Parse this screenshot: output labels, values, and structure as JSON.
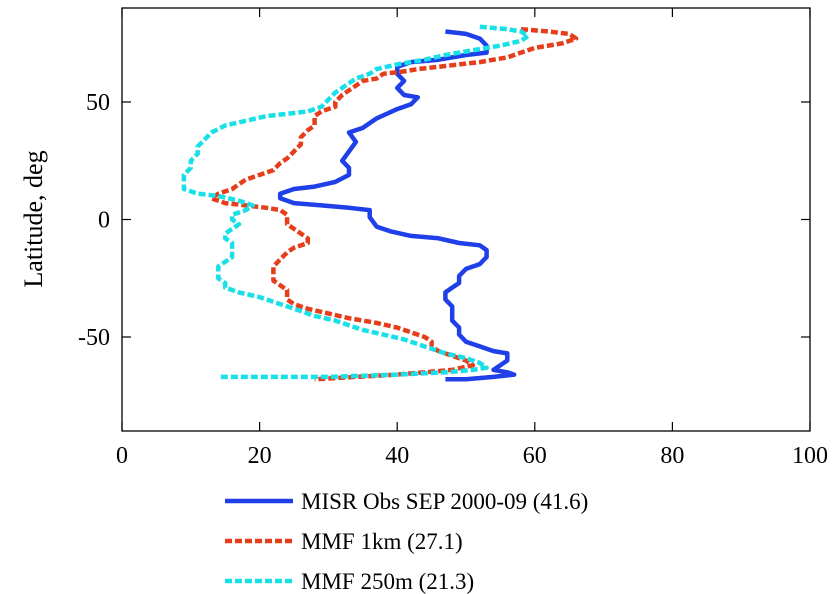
{
  "chart_data": {
    "type": "line",
    "title": "",
    "xlabel": "",
    "ylabel": "Latitude, deg",
    "xlim": [
      0,
      100
    ],
    "ylim": [
      -90,
      90
    ],
    "xticks": [
      0,
      20,
      40,
      60,
      80,
      100
    ],
    "yticks": [
      -50,
      0,
      50
    ],
    "x_tick_labels": [
      "0",
      "20",
      "40",
      "60",
      "80",
      "100"
    ],
    "y_tick_labels": [
      "-50",
      "0",
      "50"
    ],
    "grid": false,
    "legend_position": "bottom",
    "series": [
      {
        "name": "MISR Obs SEP 2000-09 (41.6)",
        "color": "#1f3fe8",
        "style": "solid",
        "points": [
          [
            47,
            80
          ],
          [
            50,
            79
          ],
          [
            52,
            77
          ],
          [
            53,
            74
          ],
          [
            53,
            71
          ],
          [
            50,
            70
          ],
          [
            46,
            68
          ],
          [
            42,
            67
          ],
          [
            40,
            65
          ],
          [
            40,
            62
          ],
          [
            41,
            59
          ],
          [
            40,
            56
          ],
          [
            41,
            53
          ],
          [
            43,
            52
          ],
          [
            42,
            49
          ],
          [
            40,
            47
          ],
          [
            37,
            43
          ],
          [
            35,
            39
          ],
          [
            33,
            37
          ],
          [
            34,
            33
          ],
          [
            33,
            29
          ],
          [
            32,
            25
          ],
          [
            33,
            22
          ],
          [
            33,
            19
          ],
          [
            31,
            16
          ],
          [
            28,
            14
          ],
          [
            25,
            13
          ],
          [
            23,
            11
          ],
          [
            23,
            9
          ],
          [
            25,
            7
          ],
          [
            29,
            6
          ],
          [
            33,
            5
          ],
          [
            36,
            4
          ],
          [
            36,
            1
          ],
          [
            37,
            -3
          ],
          [
            39,
            -5
          ],
          [
            42,
            -7
          ],
          [
            46,
            -8
          ],
          [
            49,
            -10
          ],
          [
            52,
            -11
          ],
          [
            53,
            -13
          ],
          [
            53,
            -16
          ],
          [
            52,
            -19
          ],
          [
            50,
            -21
          ],
          [
            49,
            -24
          ],
          [
            49,
            -27
          ],
          [
            48,
            -29
          ],
          [
            47,
            -31
          ],
          [
            47,
            -34
          ],
          [
            48,
            -37
          ],
          [
            48,
            -40
          ],
          [
            48,
            -43
          ],
          [
            49,
            -46
          ],
          [
            49,
            -49
          ],
          [
            50,
            -52
          ],
          [
            52,
            -54
          ],
          [
            54,
            -56
          ],
          [
            56,
            -57
          ],
          [
            56,
            -60
          ],
          [
            55,
            -62
          ],
          [
            54,
            -64
          ],
          [
            56,
            -65
          ],
          [
            57,
            -66
          ],
          [
            54,
            -67
          ],
          [
            50,
            -68
          ],
          [
            47,
            -68
          ]
        ]
      },
      {
        "name": "MMF 1km (27.1)",
        "color": "#e63d1a",
        "style": "dashed",
        "points": [
          [
            58,
            81
          ],
          [
            62,
            80
          ],
          [
            65,
            79
          ],
          [
            66,
            77
          ],
          [
            64,
            75
          ],
          [
            60,
            73
          ],
          [
            58,
            71
          ],
          [
            56,
            69
          ],
          [
            54,
            68
          ],
          [
            52,
            67
          ],
          [
            49,
            66
          ],
          [
            46,
            65
          ],
          [
            43,
            64
          ],
          [
            41,
            63
          ],
          [
            38,
            62
          ],
          [
            37,
            60
          ],
          [
            35,
            59
          ],
          [
            34,
            57
          ],
          [
            33,
            55
          ],
          [
            32,
            53
          ],
          [
            31,
            50
          ],
          [
            31,
            48
          ],
          [
            29,
            46
          ],
          [
            28,
            44
          ],
          [
            28,
            40
          ],
          [
            27,
            38
          ],
          [
            26,
            35
          ],
          [
            26,
            32
          ],
          [
            25,
            29
          ],
          [
            24,
            26
          ],
          [
            23,
            24
          ],
          [
            22,
            21
          ],
          [
            20,
            19
          ],
          [
            18,
            17
          ],
          [
            17,
            15
          ],
          [
            16,
            13
          ],
          [
            14,
            11
          ],
          [
            13,
            9
          ],
          [
            15,
            7
          ],
          [
            18,
            6
          ],
          [
            21,
            5
          ],
          [
            23,
            4
          ],
          [
            24,
            2
          ],
          [
            24,
            0
          ],
          [
            24,
            -2
          ],
          [
            25,
            -4
          ],
          [
            26,
            -6
          ],
          [
            27,
            -8
          ],
          [
            27,
            -10
          ],
          [
            25,
            -12
          ],
          [
            24,
            -14
          ],
          [
            23,
            -17
          ],
          [
            22,
            -20
          ],
          [
            22,
            -23
          ],
          [
            22,
            -26
          ],
          [
            23,
            -28
          ],
          [
            24,
            -30
          ],
          [
            24,
            -32
          ],
          [
            24,
            -34
          ],
          [
            25,
            -36
          ],
          [
            27,
            -38
          ],
          [
            30,
            -40
          ],
          [
            33,
            -42
          ],
          [
            37,
            -44
          ],
          [
            40,
            -46
          ],
          [
            42,
            -48
          ],
          [
            44,
            -50
          ],
          [
            45,
            -52
          ],
          [
            45,
            -54
          ],
          [
            46,
            -56
          ],
          [
            48,
            -58
          ],
          [
            50,
            -60
          ],
          [
            51,
            -62
          ],
          [
            48,
            -64
          ],
          [
            40,
            -66
          ],
          [
            34,
            -67
          ],
          [
            28,
            -68
          ]
        ]
      },
      {
        "name": "MMF 250m (21.3)",
        "color": "#19dfe8",
        "style": "dashed",
        "points": [
          [
            52,
            82
          ],
          [
            56,
            81
          ],
          [
            58,
            80
          ],
          [
            59,
            78
          ],
          [
            58,
            76
          ],
          [
            55,
            74
          ],
          [
            51,
            72
          ],
          [
            47,
            70
          ],
          [
            44,
            68
          ],
          [
            40,
            66
          ],
          [
            37,
            64
          ],
          [
            36,
            62
          ],
          [
            34,
            60
          ],
          [
            33,
            58
          ],
          [
            32,
            56
          ],
          [
            31,
            54
          ],
          [
            30,
            51
          ],
          [
            29,
            48
          ],
          [
            27,
            46
          ],
          [
            24,
            45
          ],
          [
            21,
            44
          ],
          [
            18,
            42
          ],
          [
            15,
            40
          ],
          [
            13,
            37
          ],
          [
            12,
            34
          ],
          [
            11,
            31
          ],
          [
            11,
            28
          ],
          [
            10,
            25
          ],
          [
            10,
            22
          ],
          [
            9,
            19
          ],
          [
            9,
            17
          ],
          [
            9,
            13
          ],
          [
            11,
            11
          ],
          [
            14,
            10
          ],
          [
            17,
            8
          ],
          [
            19,
            6
          ],
          [
            18,
            4
          ],
          [
            16,
            2
          ],
          [
            16,
            0
          ],
          [
            17,
            -2
          ],
          [
            16,
            -4
          ],
          [
            15,
            -6
          ],
          [
            15,
            -8
          ],
          [
            16,
            -10
          ],
          [
            16,
            -12
          ],
          [
            16,
            -14
          ],
          [
            16,
            -16
          ],
          [
            15,
            -18
          ],
          [
            14,
            -20
          ],
          [
            14,
            -22
          ],
          [
            14,
            -25
          ],
          [
            15,
            -27
          ],
          [
            15,
            -29
          ],
          [
            17,
            -31
          ],
          [
            20,
            -33
          ],
          [
            22,
            -35
          ],
          [
            24,
            -37
          ],
          [
            26,
            -39
          ],
          [
            28,
            -41
          ],
          [
            31,
            -43
          ],
          [
            33,
            -45
          ],
          [
            35,
            -47
          ],
          [
            38,
            -49
          ],
          [
            41,
            -51
          ],
          [
            43,
            -53
          ],
          [
            45,
            -55
          ],
          [
            47,
            -57
          ],
          [
            50,
            -59
          ],
          [
            52,
            -61
          ],
          [
            53,
            -63
          ],
          [
            51,
            -64
          ],
          [
            47,
            -65
          ],
          [
            40,
            -66
          ],
          [
            30,
            -67
          ],
          [
            22,
            -67
          ],
          [
            14,
            -67
          ]
        ]
      }
    ]
  }
}
